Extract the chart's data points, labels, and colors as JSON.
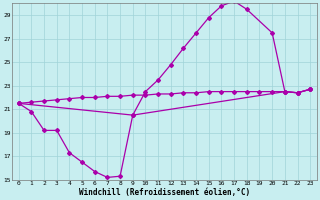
{
  "xlabel": "Windchill (Refroidissement éolien,°C)",
  "xlim": [
    -0.5,
    23.5
  ],
  "ylim": [
    15,
    30
  ],
  "xticks": [
    0,
    1,
    2,
    3,
    4,
    5,
    6,
    7,
    8,
    9,
    10,
    11,
    12,
    13,
    14,
    15,
    16,
    17,
    18,
    19,
    20,
    21,
    22,
    23
  ],
  "yticks": [
    15,
    17,
    19,
    21,
    23,
    25,
    27,
    29
  ],
  "bg_color": "#c8eef0",
  "grid_color": "#a0d4d8",
  "line_color": "#aa00aa",
  "l1x": [
    0,
    1,
    2,
    3,
    4,
    5,
    6,
    7,
    8,
    9,
    21,
    22,
    23
  ],
  "l1y": [
    21.5,
    20.8,
    19.2,
    19.2,
    17.3,
    16.5,
    15.7,
    15.2,
    15.3,
    20.5,
    22.5,
    22.4,
    22.7
  ],
  "l2x": [
    0,
    1,
    2,
    3,
    4,
    5,
    6,
    7,
    8,
    9,
    10,
    11,
    12,
    13,
    14,
    15,
    16,
    17,
    18,
    19,
    20,
    21,
    22,
    23
  ],
  "l2y": [
    21.5,
    21.6,
    21.7,
    21.8,
    21.9,
    22.0,
    22.0,
    22.1,
    22.1,
    22.2,
    22.2,
    22.3,
    22.3,
    22.4,
    22.4,
    22.5,
    22.5,
    22.5,
    22.5,
    22.5,
    22.5,
    22.5,
    22.4,
    22.7
  ],
  "l3x": [
    0,
    9,
    10,
    11,
    12,
    13,
    14,
    15,
    16,
    17,
    18,
    20,
    21,
    22,
    23
  ],
  "l3y": [
    21.5,
    20.5,
    22.5,
    23.5,
    24.8,
    26.2,
    27.5,
    28.8,
    29.8,
    30.2,
    29.5,
    27.5,
    22.5,
    22.4,
    22.7
  ]
}
